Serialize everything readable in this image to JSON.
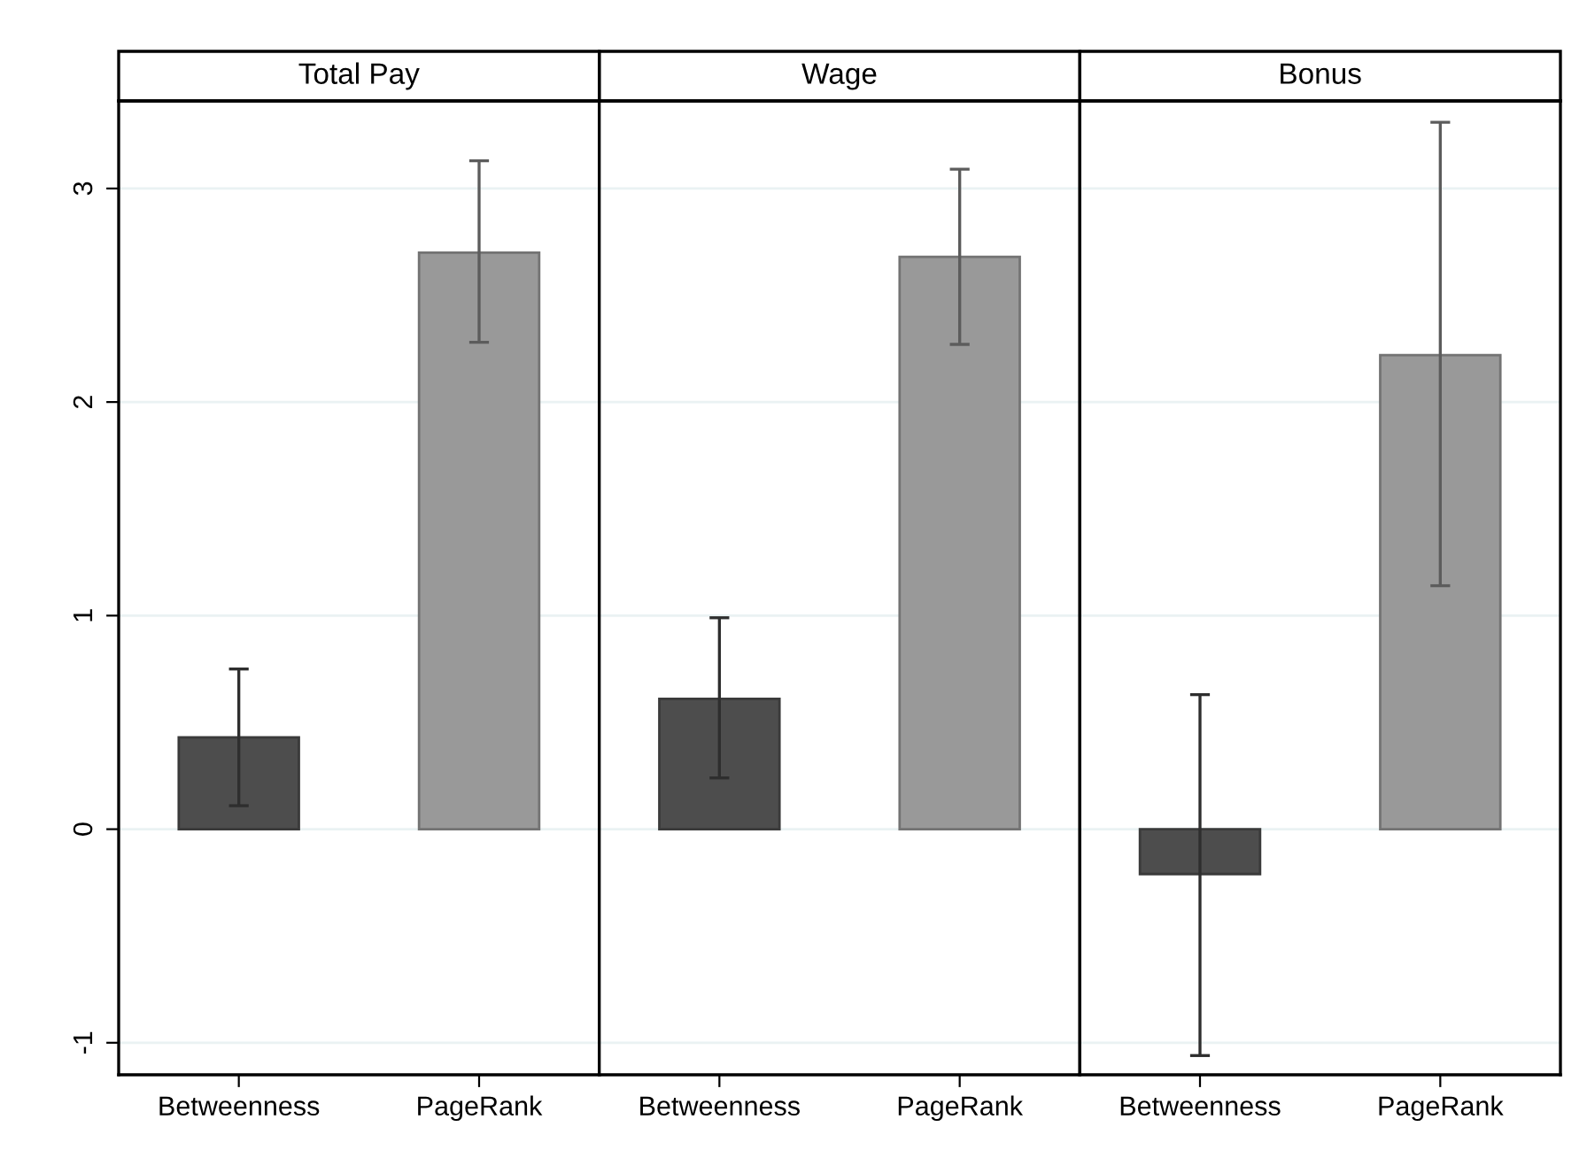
{
  "chart_data": [
    {
      "type": "bar",
      "title": "Total Pay",
      "categories": [
        "Betweenness",
        "PageRank"
      ],
      "values": [
        0.43,
        2.7
      ],
      "colors": [
        "#4d4d4d",
        "#999999"
      ],
      "errors": [
        [
          0.11,
          0.75
        ],
        [
          2.28,
          3.13
        ]
      ],
      "ylim": [
        -1.15,
        3.41
      ],
      "yticks": [
        -1,
        0,
        1,
        2,
        3
      ],
      "grid": "y"
    },
    {
      "type": "bar",
      "title": "Wage",
      "categories": [
        "Betweenness",
        "PageRank"
      ],
      "values": [
        0.61,
        2.68
      ],
      "colors": [
        "#4d4d4d",
        "#999999"
      ],
      "errors": [
        [
          0.24,
          0.99
        ],
        [
          2.27,
          3.09
        ]
      ],
      "ylim": [
        -1.15,
        3.41
      ],
      "yticks": [
        -1,
        0,
        1,
        2,
        3
      ],
      "grid": "y",
      "tick_labels": "x"
    },
    {
      "type": "bar",
      "title": "Bonus",
      "categories": [
        "Betweenness",
        "PageRank"
      ],
      "values": [
        -0.21,
        2.22
      ],
      "colors": [
        "#4d4d4d",
        "#999999"
      ],
      "errors": [
        [
          -1.06,
          0.63
        ],
        [
          1.14,
          3.31
        ]
      ],
      "ylim": [
        -1.15,
        3.41
      ],
      "yticks": [
        -1,
        0,
        1,
        2,
        3
      ],
      "grid": "y",
      "tick_labels": "x"
    }
  ]
}
